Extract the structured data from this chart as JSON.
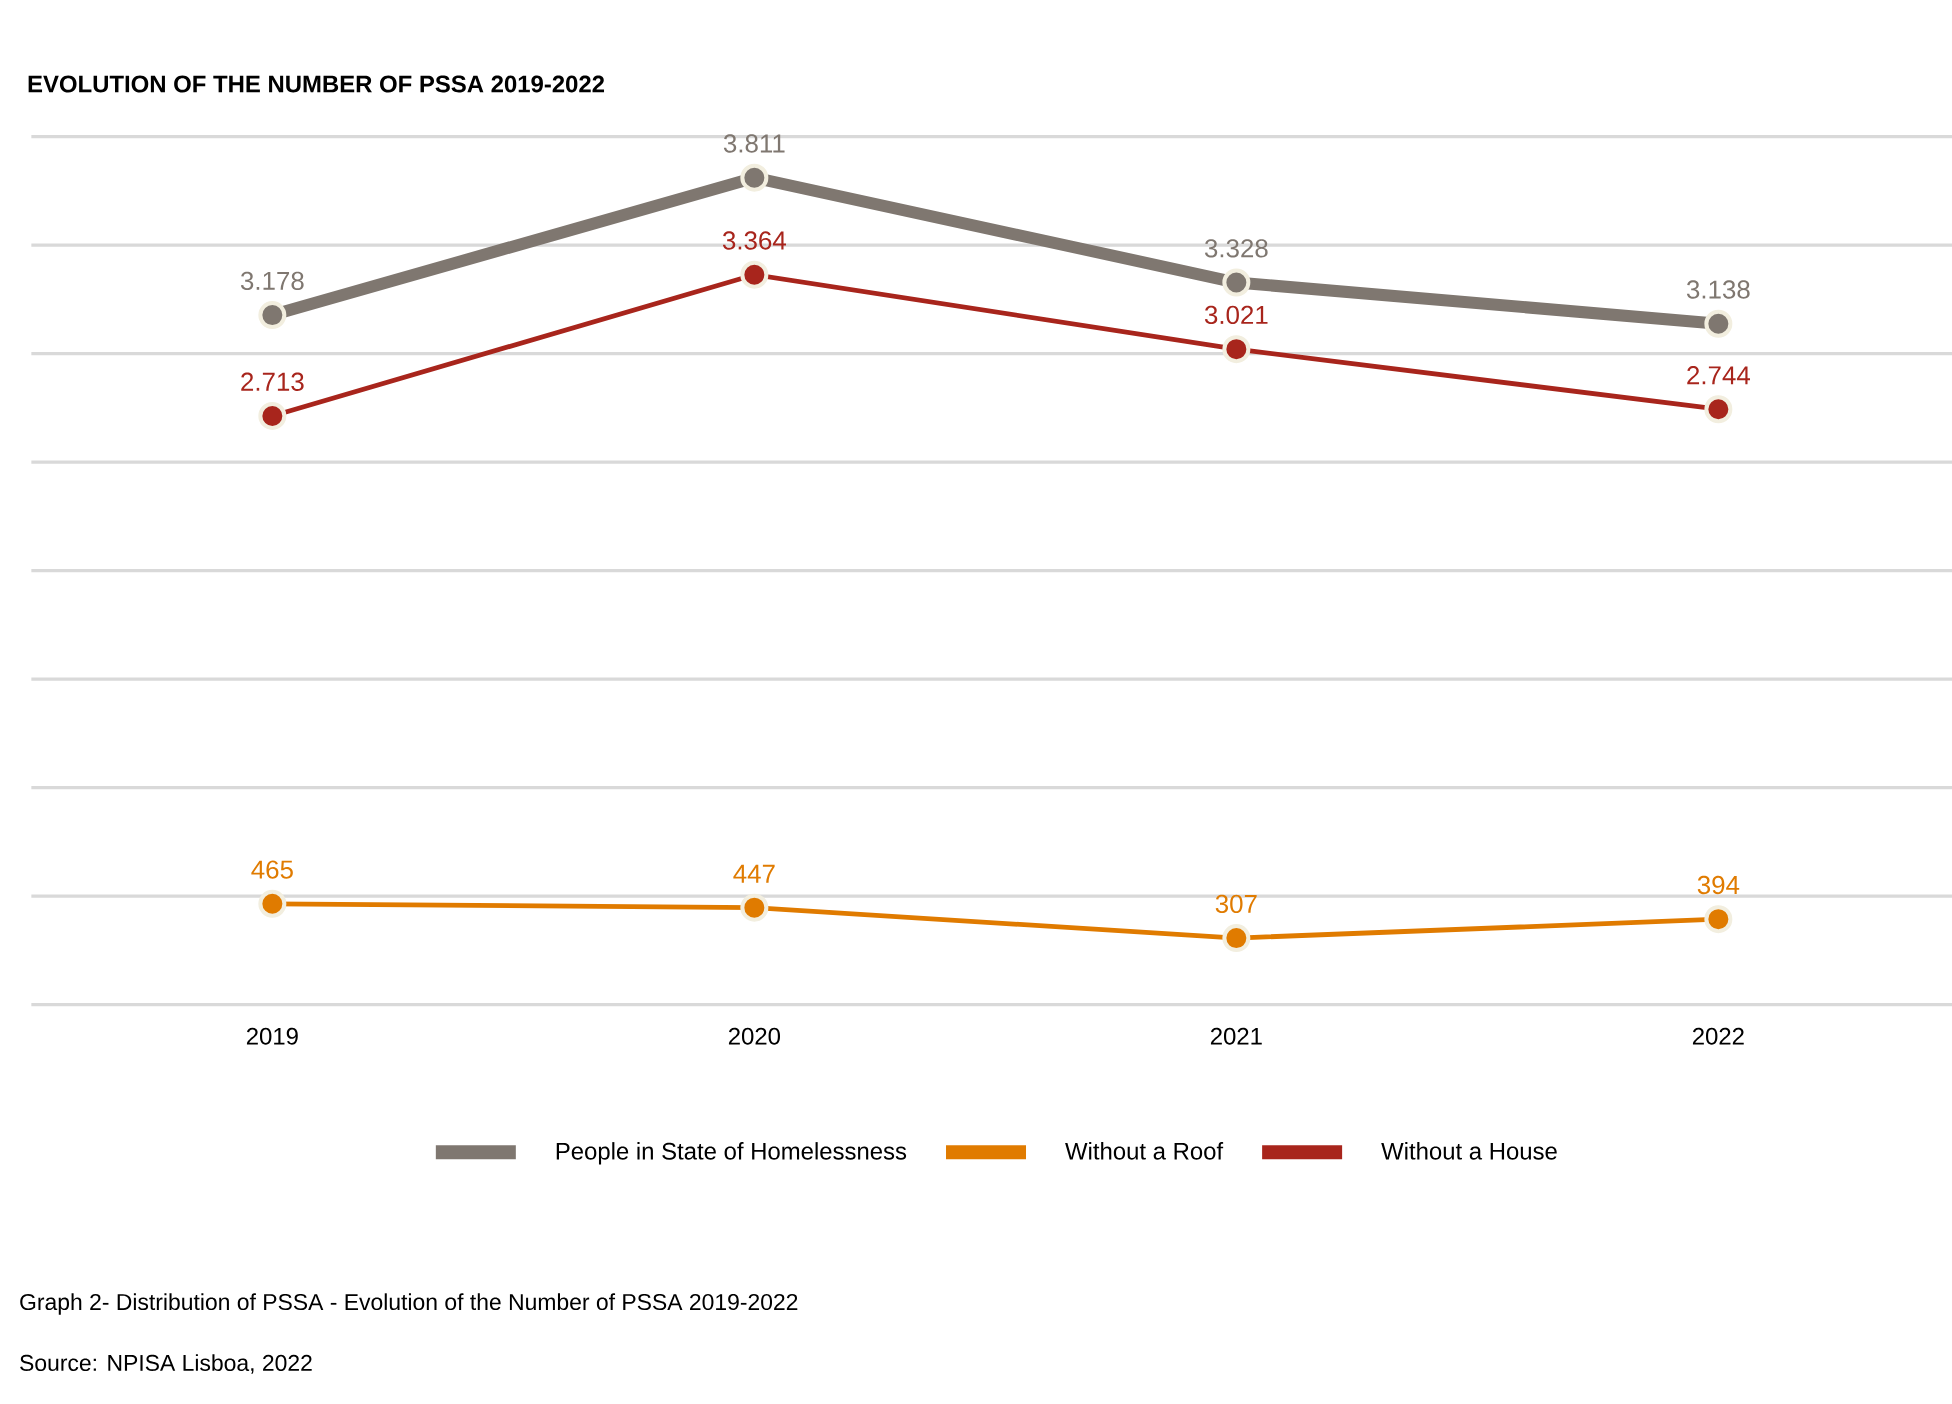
{
  "chart_data": {
    "type": "line",
    "title": "EVOLUTION OF THE NUMBER OF PSSA 2019-2022",
    "categories": [
      "2019",
      "2020",
      "2021",
      "2022"
    ],
    "series": [
      {
        "name": "People in State of Homelessness",
        "color": "#7f7770",
        "values": [
          3178,
          3811,
          3328,
          3138
        ],
        "value_labels": [
          "3.178",
          "3.811",
          "3.328",
          "3.138"
        ]
      },
      {
        "name": "Without a Roof",
        "color": "#e07b00",
        "values": [
          465,
          447,
          307,
          394
        ],
        "value_labels": [
          "465",
          "447",
          "307",
          "394"
        ]
      },
      {
        "name": "Without a House",
        "color": "#a8251c",
        "values": [
          2713,
          3364,
          3021,
          2744
        ],
        "value_labels": [
          "2.713",
          "3.364",
          "3.021",
          "2.744"
        ]
      }
    ],
    "ylim": [
      0,
      4000
    ],
    "yticks": [
      {
        "value": 0,
        "label": null
      },
      {
        "value": 500,
        "label": null
      },
      {
        "value": 1000,
        "label": null
      },
      {
        "value": 1500,
        "label": null
      },
      {
        "value": 2000,
        "label": null
      },
      {
        "value": 2500,
        "label": null
      },
      {
        "value": 3000,
        "label": null
      },
      {
        "value": 3500,
        "label": null
      },
      {
        "value": 4000,
        "label": null
      }
    ],
    "tick_labels": "x",
    "grid": "y",
    "legend": "bottom",
    "marker": "circle",
    "line_style": "solid",
    "annotations": [
      "Graph 2- Distribution of PSSA - Evolution of the Number of PSSA 2019-2022",
      "Source: NPISA Lisboa, 2022"
    ]
  }
}
